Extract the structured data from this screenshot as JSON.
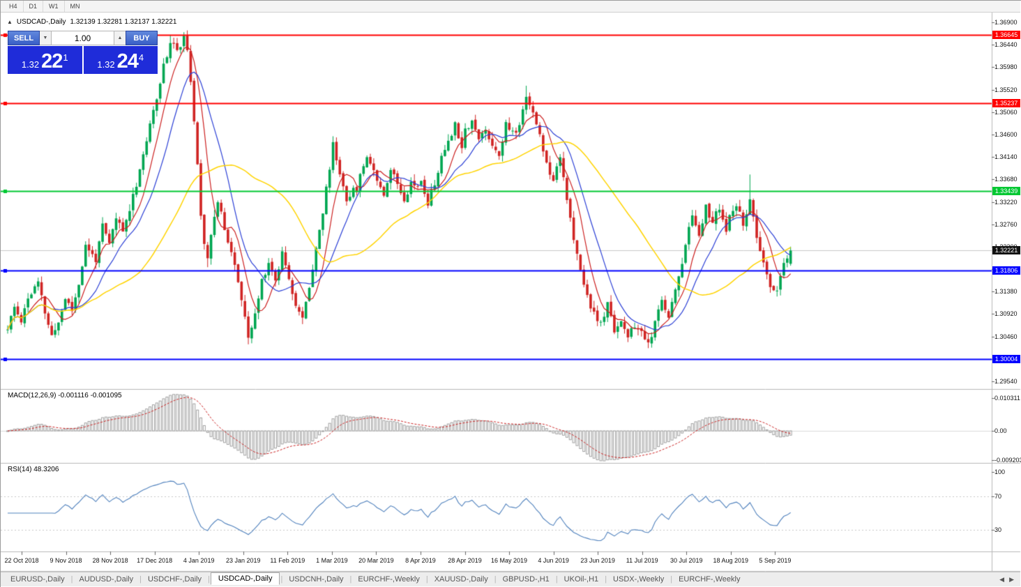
{
  "toolbar": {
    "timeframes": [
      "H4",
      "D1",
      "W1",
      "MN"
    ]
  },
  "icons": {
    "collapse": "▲",
    "spin_up": "▲",
    "spin_down": "▼",
    "tab_scroll_left": "◀",
    "tab_scroll_right": "▶"
  },
  "chart": {
    "title": "USDCAD-,Daily",
    "ohlc_readout": "1.32139 1.32281 1.32137 1.32221",
    "trade_panel": {
      "sell_label": "SELL",
      "buy_label": "BUY",
      "volume": "1.00",
      "sell": {
        "prefix": "1.32",
        "main": "22",
        "pips": "1"
      },
      "buy": {
        "prefix": "1.32",
        "main": "24",
        "pips": "4"
      }
    },
    "price_axis": [
      "1.36900",
      "1.36440",
      "1.35980",
      "1.35520",
      "1.35060",
      "1.34600",
      "1.34140",
      "1.33680",
      "1.33220",
      "1.32760",
      "1.32300",
      "1.31840",
      "1.31380",
      "1.30920",
      "1.30460",
      "1.30000",
      "1.29540"
    ],
    "levels": [
      {
        "price": 1.36645,
        "label": "1.36645",
        "color": "#ff0000"
      },
      {
        "price": 1.35237,
        "label": "1.35237",
        "color": "#ff0000"
      },
      {
        "price": 1.33439,
        "label": "1.33439",
        "color": "#00c832"
      },
      {
        "price": 1.31806,
        "label": "1.31806",
        "color": "#0000ff"
      },
      {
        "price": 1.30004,
        "label": "1.30004",
        "color": "#0000ff"
      }
    ],
    "current_price": {
      "label": "1.32221",
      "value": 1.32221
    },
    "date_axis": [
      "22 Oct 2018",
      "9 Nov 2018",
      "28 Nov 2018",
      "17 Dec 2018",
      "4 Jan 2019",
      "23 Jan 2019",
      "11 Feb 2019",
      "1 Mar 2019",
      "20 Mar 2019",
      "8 Apr 2019",
      "28 Apr 2019",
      "16 May 2019",
      "4 Jun 2019",
      "23 Jun 2019",
      "11 Jul 2019",
      "30 Jul 2019",
      "18 Aug 2019",
      "5 Sep 2019"
    ]
  },
  "indicators": {
    "macd": {
      "label": "MACD(12,26,9) -0.001116 -0.001095",
      "axis": [
        "0.010311",
        "0.00",
        "-0.009203"
      ]
    },
    "rsi": {
      "label": "RSI(14) 48.3206",
      "axis": [
        "100",
        "70",
        "30"
      ]
    }
  },
  "tabs": {
    "active_index": 3,
    "items": [
      {
        "label": "EURUSD-,Daily"
      },
      {
        "label": "AUDUSD-,Daily"
      },
      {
        "label": "USDCHF-,Daily"
      },
      {
        "label": "USDCAD-,Daily"
      },
      {
        "label": "USDCNH-,Daily"
      },
      {
        "label": "EURCHF-,Weekly"
      },
      {
        "label": "XAUUSD-,Daily"
      },
      {
        "label": "GBPUSD-,H1"
      },
      {
        "label": "UKOil-,H1"
      },
      {
        "label": "USDX-,Weekly"
      },
      {
        "label": "EURCHF-,Weekly"
      }
    ]
  },
  "theme": {
    "candle_up": "#00a651",
    "candle_down": "#d02423",
    "ma_red": "#cc1f1f",
    "ma_blue": "#2b3fd6",
    "ma_yellow": "#ffd400",
    "macd_hist": "#a0a0a0",
    "macd_signal": "#cc2222",
    "rsi_line": "#4f81bd",
    "current_tag": "#111111",
    "grid_line": "#c8c8c8",
    "panel_border": "#b8b8b8"
  },
  "chart_data": {
    "type": "candlestick",
    "symbol": "USDCAD",
    "timeframe": "Daily",
    "bars": 232,
    "ylim": [
      1.2954,
      1.369
    ],
    "ohlc_current": {
      "open": 1.32139,
      "high": 1.32281,
      "low": 1.32137,
      "close": 1.32221
    },
    "bid": 1.32221,
    "ask": 1.32244,
    "macd_values": {
      "fast": 12,
      "slow": 26,
      "signal": 9,
      "main": -0.001116,
      "signal_value": -0.001095,
      "scale_max": 0.010311,
      "scale_min": -0.009203
    },
    "rsi_values": {
      "period": 14,
      "current": 48.3206,
      "levels": [
        70,
        30
      ]
    },
    "price_path": [
      [
        0,
        1.306
      ],
      [
        2,
        1.3105
      ],
      [
        4,
        1.308
      ],
      [
        6,
        1.3125
      ],
      [
        9,
        1.3155
      ],
      [
        11,
        1.3095
      ],
      [
        13,
        1.3045
      ],
      [
        15,
        1.3075
      ],
      [
        17,
        1.3125
      ],
      [
        19,
        1.31
      ],
      [
        21,
        1.3155
      ],
      [
        23,
        1.323
      ],
      [
        26,
        1.3205
      ],
      [
        28,
        1.327
      ],
      [
        30,
        1.3235
      ],
      [
        32,
        1.329
      ],
      [
        34,
        1.326
      ],
      [
        36,
        1.331
      ],
      [
        38,
        1.336
      ],
      [
        40,
        1.342
      ],
      [
        42,
        1.3475
      ],
      [
        44,
        1.354
      ],
      [
        46,
        1.36
      ],
      [
        48,
        1.365
      ],
      [
        50,
        1.3635
      ],
      [
        52,
        1.3655
      ],
      [
        53,
        1.364
      ],
      [
        54,
        1.356
      ],
      [
        55,
        1.348
      ],
      [
        56,
        1.34
      ],
      [
        57,
        1.33
      ],
      [
        58,
        1.324
      ],
      [
        59,
        1.321
      ],
      [
        60,
        1.326
      ],
      [
        62,
        1.332
      ],
      [
        64,
        1.327
      ],
      [
        66,
        1.322
      ],
      [
        68,
        1.316
      ],
      [
        70,
        1.308
      ],
      [
        71,
        1.304
      ],
      [
        73,
        1.309
      ],
      [
        75,
        1.316
      ],
      [
        77,
        1.32
      ],
      [
        79,
        1.316
      ],
      [
        81,
        1.322
      ],
      [
        83,
        1.317
      ],
      [
        85,
        1.311
      ],
      [
        87,
        1.308
      ],
      [
        89,
        1.315
      ],
      [
        91,
        1.323
      ],
      [
        93,
        1.33
      ],
      [
        96,
        1.344
      ],
      [
        98,
        1.338
      ],
      [
        100,
        1.333
      ],
      [
        103,
        1.335
      ],
      [
        106,
        1.342
      ],
      [
        109,
        1.337
      ],
      [
        111,
        1.334
      ],
      [
        113,
        1.339
      ],
      [
        115,
        1.336
      ],
      [
        117,
        1.333
      ],
      [
        119,
        1.336
      ],
      [
        122,
        1.336
      ],
      [
        124,
        1.332
      ],
      [
        126,
        1.336
      ],
      [
        128,
        1.341
      ],
      [
        130,
        1.345
      ],
      [
        132,
        1.348
      ],
      [
        134,
        1.344
      ],
      [
        135,
        1.347
      ],
      [
        137,
        1.349
      ],
      [
        139,
        1.345
      ],
      [
        141,
        1.347
      ],
      [
        143,
        1.344
      ],
      [
        145,
        1.342
      ],
      [
        147,
        1.348
      ],
      [
        150,
        1.346
      ],
      [
        152,
        1.351
      ],
      [
        153,
        1.3545
      ],
      [
        155,
        1.35
      ],
      [
        157,
        1.346
      ],
      [
        159,
        1.34
      ],
      [
        161,
        1.337
      ],
      [
        163,
        1.342
      ],
      [
        165,
        1.333
      ],
      [
        167,
        1.324
      ],
      [
        169,
        1.318
      ],
      [
        171,
        1.313
      ],
      [
        173,
        1.309
      ],
      [
        175,
        1.307
      ],
      [
        177,
        1.311
      ],
      [
        179,
        1.306
      ],
      [
        181,
        1.308
      ],
      [
        183,
        1.304
      ],
      [
        185,
        1.307
      ],
      [
        187,
        1.305
      ],
      [
        189,
        1.303
      ],
      [
        191,
        1.307
      ],
      [
        193,
        1.312
      ],
      [
        195,
        1.309
      ],
      [
        197,
        1.314
      ],
      [
        199,
        1.32
      ],
      [
        200,
        1.324
      ],
      [
        202,
        1.329
      ],
      [
        204,
        1.326
      ],
      [
        206,
        1.331
      ],
      [
        208,
        1.328
      ],
      [
        210,
        1.331
      ],
      [
        212,
        1.326
      ],
      [
        213,
        1.329
      ],
      [
        215,
        1.331
      ],
      [
        217,
        1.328
      ],
      [
        219,
        1.332
      ],
      [
        221,
        1.325
      ],
      [
        223,
        1.319
      ],
      [
        225,
        1.315
      ],
      [
        227,
        1.314
      ],
      [
        229,
        1.319
      ],
      [
        231,
        1.3222
      ]
    ],
    "key_extremes": [
      {
        "bar": 48,
        "type": "high",
        "price": 1.3663
      },
      {
        "bar": 50,
        "type": "high",
        "price": 1.3658
      },
      {
        "bar": 153,
        "type": "high",
        "price": 1.356
      },
      {
        "bar": 219,
        "type": "high",
        "price": 1.3378
      },
      {
        "bar": 59,
        "type": "low",
        "price": 1.3188
      },
      {
        "bar": 189,
        "type": "low",
        "price": 1.3022
      }
    ]
  }
}
